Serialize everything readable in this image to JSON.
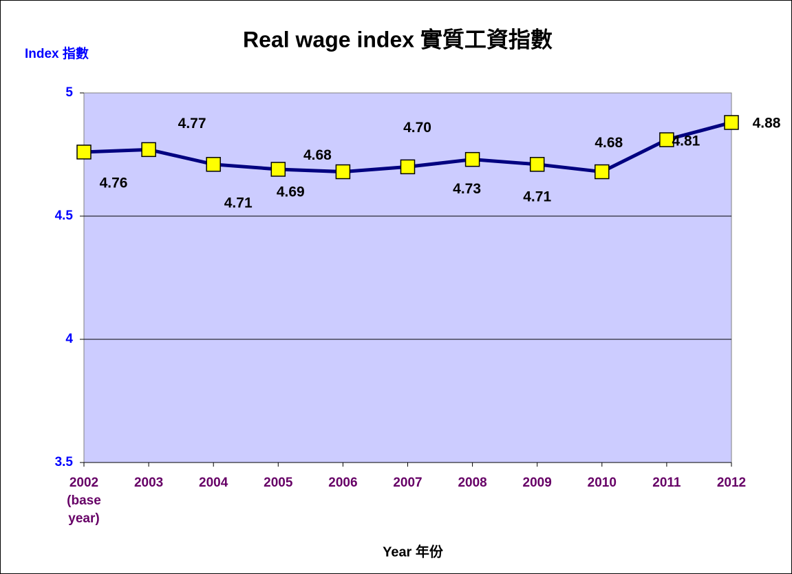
{
  "chart_data": {
    "type": "line",
    "title": "Real wage index 實質工資指數",
    "y_label": "Index 指數",
    "x_label": "Year 年份",
    "categories": [
      "2002 (base year)",
      "2003",
      "2004",
      "2005",
      "2006",
      "2007",
      "2008",
      "2009",
      "2010",
      "2011",
      "2012"
    ],
    "series": [
      {
        "name": "Real wage index",
        "color": "#000080",
        "values": [
          4.76,
          4.77,
          4.71,
          4.69,
          4.68,
          4.7,
          4.73,
          4.71,
          4.68,
          4.81,
          4.88
        ],
        "value_labels": [
          "4.76",
          "4.77",
          "4.71",
          "4.69",
          "4.68",
          "4.70",
          "4.73",
          "4.71",
          "4.68",
          "4.81",
          "4.88"
        ],
        "marker_color": "#ffff00"
      }
    ],
    "ylim": [
      3.5,
      5
    ],
    "yticks": [
      3.5,
      4,
      4.5,
      5
    ],
    "grid": true,
    "plot_background": "#ccccff"
  }
}
